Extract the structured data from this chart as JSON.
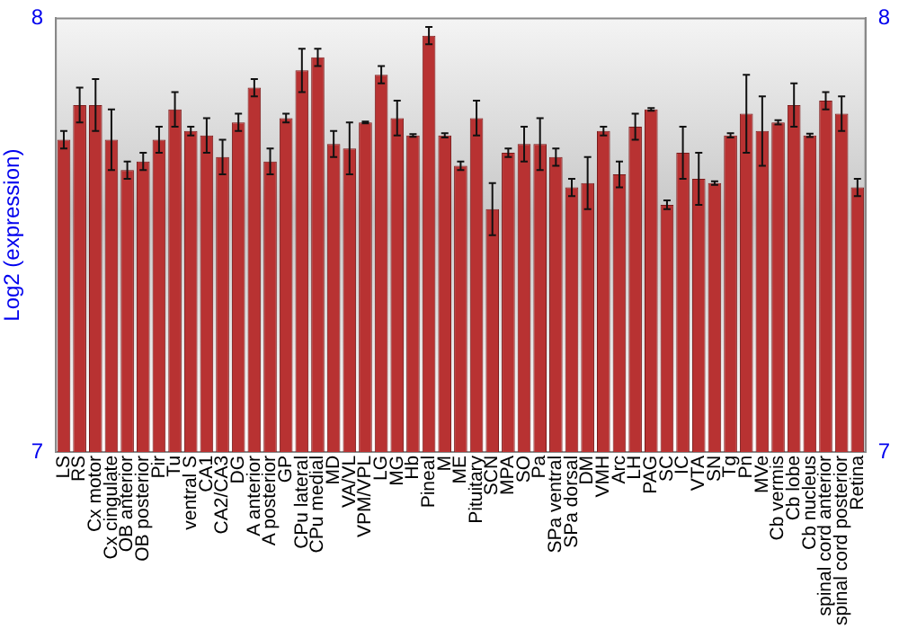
{
  "chart_data": {
    "type": "bar",
    "ylabel": "Log2 (expression)",
    "categories": [
      "LS",
      "RS",
      "Cx motor",
      "Cx cingulate",
      "OB anterior",
      "OB posterior",
      "Pir",
      "Tu",
      "ventral S",
      "CA1",
      "CA2/CA3",
      "DG",
      "A anterior",
      "A posterior",
      "GP",
      "CPu lateral",
      "CPu medial",
      "MD",
      "VA/VL",
      "VPM/VPL",
      "LG",
      "MG",
      "Hb",
      "Pineal",
      "M",
      "ME",
      "Pituitary",
      "SCN",
      "MPA",
      "SO",
      "Pa",
      "SPa ventral",
      "SPa dorsal",
      "DM",
      "VMH",
      "Arc",
      "LH",
      "PAG",
      "SC",
      "IC",
      "VTA",
      "SN",
      "Tg",
      "Pn",
      "MVe",
      "Cb vermis",
      "Cb lobe",
      "Cb nucleus",
      "spinal cord anterior",
      "spinal cord posterior",
      "Retina"
    ],
    "values": [
      7.72,
      7.8,
      7.8,
      7.72,
      7.65,
      7.67,
      7.72,
      7.79,
      7.74,
      7.73,
      7.68,
      7.76,
      7.84,
      7.67,
      7.77,
      7.88,
      7.91,
      7.71,
      7.7,
      7.76,
      7.87,
      7.77,
      7.73,
      7.96,
      7.73,
      7.66,
      7.77,
      7.56,
      7.69,
      7.71,
      7.71,
      7.68,
      7.61,
      7.62,
      7.74,
      7.64,
      7.75,
      7.79,
      7.57,
      7.69,
      7.63,
      7.62,
      7.73,
      7.78,
      7.74,
      7.76,
      7.8,
      7.73,
      7.81,
      7.78,
      7.61
    ],
    "errors": [
      0.02,
      0.04,
      0.06,
      0.07,
      0.02,
      0.02,
      0.03,
      0.04,
      0.01,
      0.04,
      0.04,
      0.02,
      0.02,
      0.03,
      0.01,
      0.05,
      0.02,
      0.03,
      0.06,
      0.002,
      0.02,
      0.04,
      0.003,
      0.02,
      0.005,
      0.01,
      0.04,
      0.06,
      0.01,
      0.04,
      0.06,
      0.02,
      0.02,
      0.06,
      0.01,
      0.03,
      0.03,
      0.003,
      0.01,
      0.06,
      0.06,
      0.004,
      0.005,
      0.09,
      0.08,
      0.005,
      0.05,
      0.004,
      0.02,
      0.04,
      0.02
    ],
    "color": "#b83232",
    "ylim": [
      7,
      8
    ],
    "yticks": [
      7,
      8
    ],
    "y2lim": [
      7,
      8
    ],
    "y2ticks": [
      7,
      8
    ],
    "grid": false,
    "legend": false
  }
}
